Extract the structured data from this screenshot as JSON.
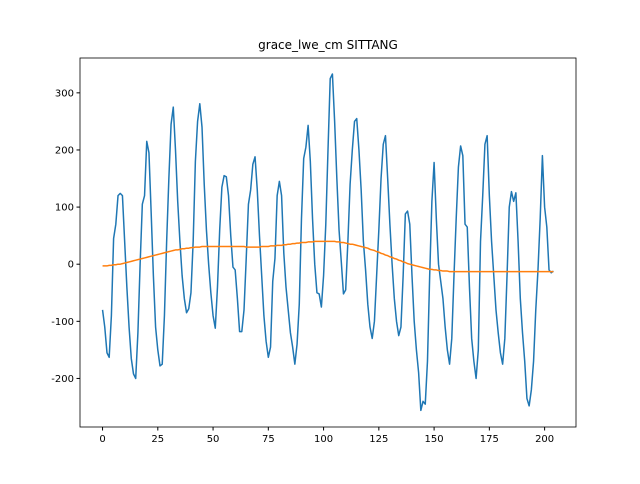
{
  "chart_data": {
    "type": "line",
    "title": "grace_lwe_cm SITTANG",
    "x": [
      0,
      1,
      2,
      3,
      4,
      5,
      6,
      7,
      8,
      9,
      10,
      11,
      12,
      13,
      14,
      15,
      16,
      17,
      18,
      19,
      20,
      21,
      22,
      23,
      24,
      25,
      26,
      27,
      28,
      29,
      30,
      31,
      32,
      33,
      34,
      35,
      36,
      37,
      38,
      39,
      40,
      41,
      42,
      43,
      44,
      45,
      46,
      47,
      48,
      49,
      50,
      51,
      52,
      53,
      54,
      55,
      56,
      57,
      58,
      59,
      60,
      61,
      62,
      63,
      64,
      65,
      66,
      67,
      68,
      69,
      70,
      71,
      72,
      73,
      74,
      75,
      76,
      77,
      78,
      79,
      80,
      81,
      82,
      83,
      84,
      85,
      86,
      87,
      88,
      89,
      90,
      91,
      92,
      93,
      94,
      95,
      96,
      97,
      98,
      99,
      100,
      101,
      102,
      103,
      104,
      105,
      106,
      107,
      108,
      109,
      110,
      111,
      112,
      113,
      114,
      115,
      116,
      117,
      118,
      119,
      120,
      121,
      122,
      123,
      124,
      125,
      126,
      127,
      128,
      129,
      130,
      131,
      132,
      133,
      134,
      135,
      136,
      137,
      138,
      139,
      140,
      141,
      142,
      143,
      144,
      145,
      146,
      147,
      148,
      149,
      150,
      151,
      152,
      153,
      154,
      155,
      156,
      157,
      158,
      159,
      160,
      161,
      162,
      163,
      164,
      165,
      166,
      167,
      168,
      169,
      170,
      171,
      172,
      173,
      174,
      175,
      176,
      177,
      178,
      179,
      180,
      181,
      182,
      183,
      184,
      185,
      186,
      187,
      188,
      189,
      190,
      191,
      192,
      193,
      194,
      195,
      196,
      197,
      198,
      199,
      200,
      201,
      202,
      203,
      204
    ],
    "series": [
      {
        "color": "#1f77b4",
        "values": [
          -80,
          -110,
          -155,
          -163,
          -90,
          45,
          70,
          120,
          124,
          120,
          40,
          -40,
          -110,
          -165,
          -192,
          -200,
          -120,
          0,
          105,
          120,
          215,
          195,
          90,
          -20,
          -110,
          -150,
          -178,
          -175,
          -90,
          40,
          150,
          245,
          275,
          200,
          110,
          40,
          -20,
          -60,
          -85,
          -78,
          -50,
          40,
          180,
          250,
          281,
          240,
          140,
          60,
          0,
          -50,
          -90,
          -112,
          -40,
          60,
          135,
          155,
          153,
          120,
          50,
          -5,
          -10,
          -60,
          -118,
          -118,
          -80,
          10,
          105,
          130,
          175,
          188,
          130,
          50,
          -20,
          -90,
          -135,
          -163,
          -145,
          -30,
          10,
          120,
          145,
          120,
          20,
          -40,
          -80,
          -120,
          -145,
          -175,
          -140,
          -70,
          80,
          185,
          205,
          243,
          180,
          80,
          0,
          -50,
          -52,
          -75,
          -20,
          70,
          200,
          325,
          333,
          250,
          150,
          60,
          5,
          -52,
          -45,
          40,
          140,
          200,
          250,
          255,
          200,
          130,
          40,
          -10,
          -70,
          -110,
          -130,
          -100,
          -20,
          60,
          150,
          210,
          225,
          150,
          70,
          0,
          -60,
          -100,
          -125,
          -110,
          -20,
          88,
          93,
          70,
          -20,
          -100,
          -150,
          -190,
          -256,
          -240,
          -245,
          -170,
          -20,
          110,
          178,
          80,
          0,
          -30,
          -60,
          -110,
          -150,
          -175,
          -130,
          -20,
          80,
          170,
          207,
          190,
          70,
          65,
          -40,
          -130,
          -170,
          -200,
          -150,
          40,
          120,
          210,
          225,
          120,
          40,
          -20,
          -80,
          -120,
          -155,
          -175,
          -130,
          -20,
          100,
          127,
          110,
          125,
          40,
          -60,
          -120,
          -170,
          -235,
          -248,
          -220,
          -170,
          -80,
          -10,
          80,
          190,
          100,
          65,
          -10,
          -15,
          -12
        ]
      },
      {
        "color": "#ff7f0e",
        "values": [
          -3,
          -3,
          -3,
          -2,
          -2,
          -1,
          -1,
          0,
          0,
          1,
          2,
          3,
          4,
          5,
          6,
          7,
          8,
          9,
          10,
          11,
          12,
          13,
          14,
          15,
          16,
          17,
          18,
          19,
          20,
          21,
          22,
          23,
          24,
          25,
          25,
          26,
          27,
          27,
          28,
          28,
          29,
          29,
          30,
          30,
          30,
          31,
          31,
          31,
          31,
          31,
          31,
          31,
          31,
          31,
          31,
          31,
          31,
          31,
          31,
          31,
          31,
          31,
          31,
          31,
          31,
          30,
          30,
          30,
          30,
          30,
          30,
          30,
          31,
          31,
          31,
          31,
          32,
          32,
          32,
          33,
          33,
          33,
          34,
          34,
          35,
          35,
          36,
          36,
          37,
          37,
          38,
          38,
          38,
          39,
          39,
          39,
          40,
          40,
          40,
          40,
          40,
          40,
          40,
          40,
          40,
          40,
          39,
          39,
          38,
          38,
          37,
          36,
          35,
          35,
          34,
          33,
          32,
          31,
          30,
          29,
          28,
          26,
          25,
          24,
          22,
          21,
          19,
          18,
          16,
          15,
          13,
          12,
          10,
          9,
          7,
          6,
          4,
          3,
          1,
          0,
          -1,
          -2,
          -3,
          -4,
          -5,
          -6,
          -7,
          -8,
          -9,
          -9,
          -10,
          -10,
          -11,
          -11,
          -12,
          -12,
          -12,
          -13,
          -13,
          -13,
          -13,
          -13,
          -13,
          -13,
          -13,
          -13,
          -13,
          -13,
          -13,
          -13,
          -13,
          -13,
          -13,
          -13,
          -13,
          -13,
          -13,
          -13,
          -13,
          -13,
          -13,
          -13,
          -13,
          -13,
          -13,
          -13,
          -13,
          -13,
          -13,
          -13,
          -13,
          -13,
          -13,
          -13,
          -13,
          -13,
          -13,
          -13,
          -13,
          -13,
          -13,
          -13,
          -13,
          -13,
          -13
        ]
      }
    ],
    "xlim": [
      -10.2,
      214.2
    ],
    "ylim": [
      -285,
      361
    ],
    "xticks": [
      0,
      25,
      50,
      75,
      100,
      125,
      150,
      175,
      200
    ],
    "yticks": [
      -200,
      -100,
      0,
      100,
      200,
      300
    ]
  }
}
